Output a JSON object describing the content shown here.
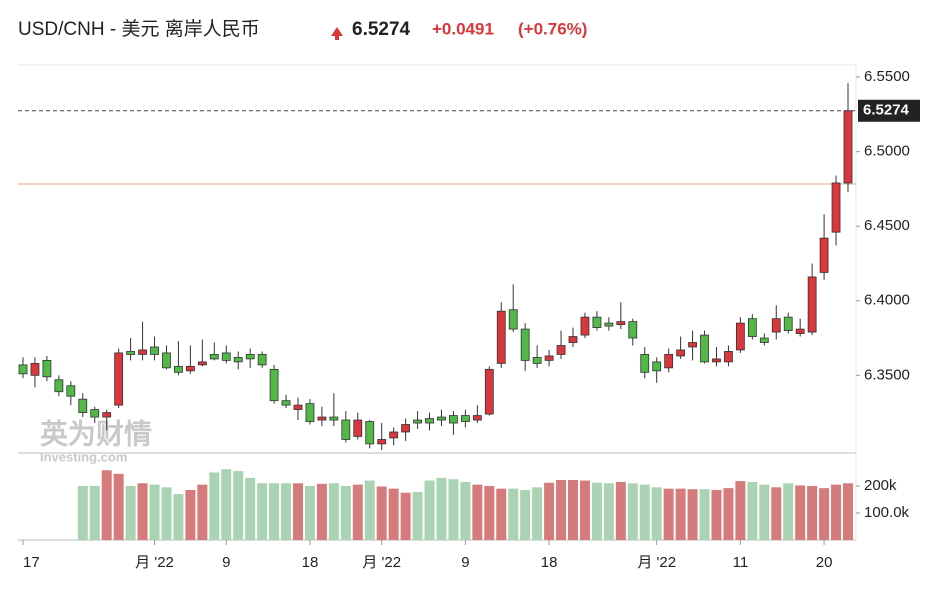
{
  "header": {
    "title": "USD/CNH - 美元 离岸人民币",
    "price": "6.5274",
    "change": "+0.0491",
    "change_pct": "(+0.76%)"
  },
  "watermark": {
    "brand": "英为财情",
    "site": "Investing.com"
  },
  "chart_data": {
    "type": "candlestick",
    "up_color": "#d9373b",
    "down_color": "#52b848",
    "vol_up_color": "#d57b7b",
    "vol_down_color": "#a9d3b3",
    "last_price": {
      "value": 6.5274,
      "label": "6.5274"
    },
    "prev_close": 6.4783,
    "categories": [
      "17",
      null,
      null,
      null,
      null,
      null,
      null,
      null,
      null,
      null,
      null,
      "月 '22",
      null,
      null,
      null,
      null,
      null,
      "9",
      null,
      null,
      null,
      null,
      null,
      null,
      "18",
      null,
      null,
      null,
      null,
      null,
      "月 '22",
      null,
      null,
      null,
      null,
      null,
      null,
      "9",
      null,
      null,
      null,
      null,
      null,
      null,
      "18",
      null,
      null,
      null,
      null,
      null,
      null,
      null,
      null,
      "月 '22",
      null,
      null,
      null,
      null,
      null,
      null,
      "11",
      null,
      null,
      null,
      null,
      null,
      null,
      "20",
      null,
      null
    ],
    "open": [
      6.357,
      6.35,
      6.36,
      6.347,
      6.343,
      6.334,
      6.327,
      6.322,
      6.33,
      6.366,
      6.364,
      6.369,
      6.365,
      6.356,
      6.353,
      6.357,
      6.364,
      6.365,
      6.362,
      6.364,
      6.364,
      6.354,
      6.333,
      6.327,
      6.331,
      6.32,
      6.322,
      6.32,
      6.309,
      6.319,
      6.304,
      6.308,
      6.312,
      6.32,
      6.321,
      6.322,
      6.323,
      6.323,
      6.32,
      6.324,
      6.358,
      6.394,
      6.381,
      6.362,
      6.36,
      6.364,
      6.372,
      6.377,
      6.389,
      6.385,
      6.384,
      6.386,
      6.364,
      6.359,
      6.355,
      6.363,
      6.369,
      6.377,
      6.359,
      6.359,
      6.367,
      6.388,
      6.375,
      6.379,
      6.389,
      6.378,
      6.379,
      6.419,
      6.446,
      6.479
    ],
    "high": [
      6.362,
      6.362,
      6.363,
      6.35,
      6.346,
      6.338,
      6.329,
      6.327,
      6.368,
      6.375,
      6.386,
      6.376,
      6.37,
      6.373,
      6.37,
      6.374,
      6.372,
      6.37,
      6.366,
      6.368,
      6.366,
      6.357,
      6.337,
      6.335,
      6.334,
      6.329,
      6.338,
      6.326,
      6.325,
      6.32,
      6.318,
      6.315,
      6.321,
      6.326,
      6.325,
      6.327,
      6.326,
      6.327,
      6.33,
      6.356,
      6.399,
      6.411,
      6.385,
      6.37,
      6.367,
      6.38,
      6.382,
      6.392,
      6.393,
      6.389,
      6.399,
      6.388,
      6.369,
      6.362,
      6.368,
      6.376,
      6.38,
      6.38,
      6.369,
      6.37,
      6.389,
      6.391,
      6.378,
      6.397,
      6.392,
      6.388,
      6.425,
      6.458,
      6.484,
      6.5459
    ],
    "low": [
      6.348,
      6.342,
      6.346,
      6.336,
      6.33,
      6.322,
      6.318,
      6.313,
      6.328,
      6.36,
      6.36,
      6.36,
      6.354,
      6.35,
      6.351,
      6.356,
      6.36,
      6.358,
      6.354,
      6.355,
      6.355,
      6.331,
      6.328,
      6.32,
      6.317,
      6.316,
      6.316,
      6.305,
      6.307,
      6.301,
      6.3,
      6.303,
      6.306,
      6.314,
      6.313,
      6.316,
      6.31,
      6.315,
      6.318,
      6.323,
      6.355,
      6.379,
      6.353,
      6.355,
      6.356,
      6.361,
      6.369,
      6.375,
      6.38,
      6.38,
      6.381,
      6.37,
      6.348,
      6.345,
      6.352,
      6.361,
      6.36,
      6.358,
      6.356,
      6.356,
      6.365,
      6.374,
      6.37,
      6.374,
      6.378,
      6.376,
      6.377,
      6.414,
      6.437,
      6.4728
    ],
    "close": [
      6.351,
      6.358,
      6.349,
      6.339,
      6.336,
      6.325,
      6.322,
      6.325,
      6.365,
      6.364,
      6.367,
      6.364,
      6.355,
      6.352,
      6.356,
      6.359,
      6.361,
      6.36,
      6.359,
      6.361,
      6.357,
      6.333,
      6.33,
      6.33,
      6.319,
      6.322,
      6.32,
      6.307,
      6.32,
      6.304,
      6.307,
      6.312,
      6.317,
      6.318,
      6.318,
      6.32,
      6.318,
      6.319,
      6.323,
      6.354,
      6.393,
      6.381,
      6.36,
      6.358,
      6.363,
      6.37,
      6.376,
      6.389,
      6.382,
      6.383,
      6.386,
      6.375,
      6.352,
      6.353,
      6.364,
      6.367,
      6.372,
      6.359,
      6.361,
      6.366,
      6.385,
      6.376,
      6.372,
      6.388,
      6.38,
      6.381,
      6.416,
      6.442,
      6.479,
      6.5274
    ],
    "volume": [
      null,
      null,
      null,
      null,
      null,
      200000,
      200000,
      258000,
      245000,
      200000,
      210000,
      205000,
      195000,
      170000,
      185000,
      205000,
      250000,
      262000,
      255000,
      230000,
      210000,
      210000,
      210000,
      210000,
      200000,
      208000,
      210000,
      200000,
      205000,
      220000,
      198000,
      190000,
      175000,
      178000,
      220000,
      230000,
      225000,
      215000,
      205000,
      200000,
      190000,
      190000,
      185000,
      195000,
      212000,
      222000,
      222000,
      220000,
      212000,
      210000,
      215000,
      210000,
      205000,
      195000,
      190000,
      190000,
      188000,
      188000,
      185000,
      192000,
      218000,
      215000,
      205000,
      195000,
      210000,
      202000,
      200000,
      192000,
      205000,
      210000
    ],
    "ylim": [
      6.2979,
      6.5581
    ],
    "yticks": [
      {
        "value": 6.35,
        "label": "6.3500"
      },
      {
        "value": 6.4,
        "label": "6.4000"
      },
      {
        "value": 6.45,
        "label": "6.4500"
      },
      {
        "value": 6.5,
        "label": "6.5000"
      },
      {
        "value": 6.55,
        "label": "6.5500"
      }
    ],
    "vol_ylim": [
      0,
      322000
    ],
    "vol_yticks": [
      {
        "value": 100000,
        "label": "100.0k"
      },
      {
        "value": 200000,
        "label": "200k"
      }
    ]
  }
}
